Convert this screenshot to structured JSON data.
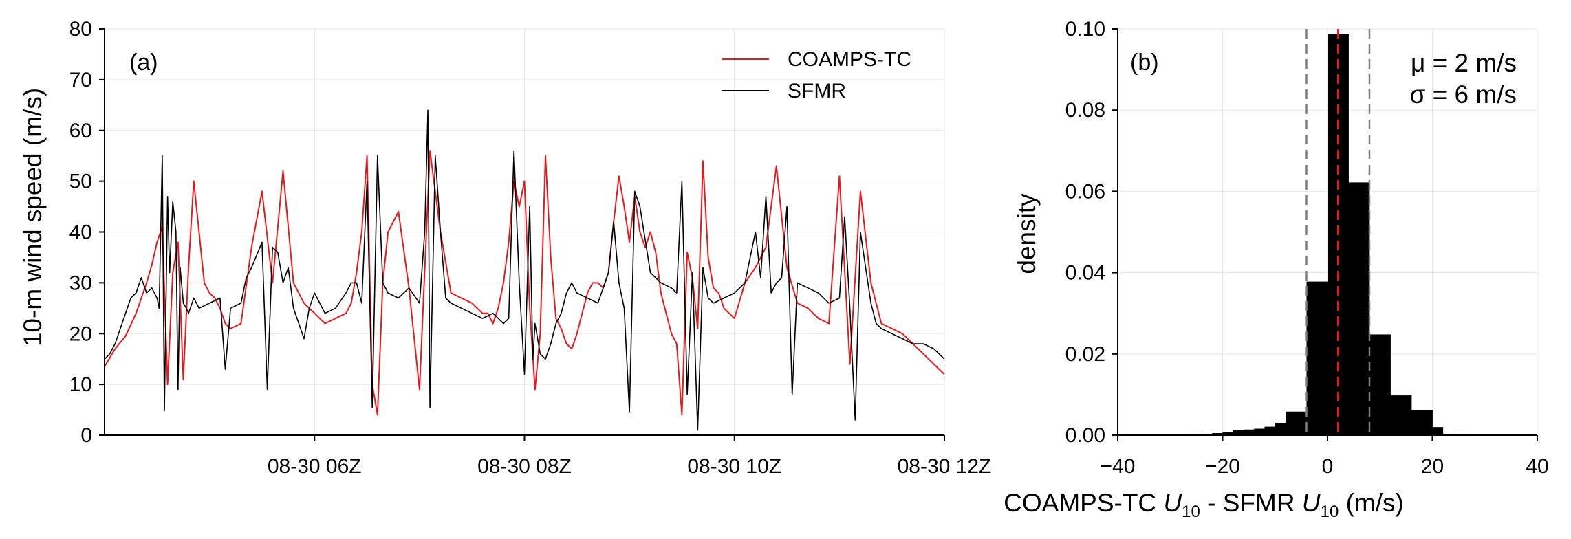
{
  "chart_data": [
    {
      "panel": "(a)",
      "type": "line",
      "title": "",
      "xlabel": "",
      "ylabel": "10-m wind speed (m/s)",
      "x_unit": "hours (UTC) on 08-30",
      "xlim": [
        4.0,
        12.0
      ],
      "ylim": [
        0,
        80
      ],
      "yticks": [
        0,
        10,
        20,
        30,
        40,
        50,
        60,
        70,
        80
      ],
      "xticks": [
        6,
        8,
        10,
        12
      ],
      "xtick_labels": [
        "08-30 06Z",
        "08-30 08Z",
        "08-30 10Z",
        "08-30 12Z"
      ],
      "grid": true,
      "legend": {
        "placement": "top-right",
        "entries": [
          "COAMPS-TC",
          "SFMR"
        ]
      },
      "series": [
        {
          "name": "COAMPS-TC",
          "color": "#e8191b",
          "x": [
            4.0,
            4.1,
            4.2,
            4.3,
            4.4,
            4.45,
            4.5,
            4.55,
            4.6,
            4.65,
            4.7,
            4.75,
            4.8,
            4.85,
            4.9,
            4.95,
            5.0,
            5.05,
            5.1,
            5.15,
            5.2,
            5.3,
            5.4,
            5.5,
            5.6,
            5.7,
            5.8,
            5.9,
            6.0,
            6.1,
            6.2,
            6.3,
            6.35,
            6.4,
            6.45,
            6.5,
            6.55,
            6.6,
            6.65,
            6.7,
            6.8,
            6.9,
            7.0,
            7.1,
            7.2,
            7.3,
            7.4,
            7.5,
            7.6,
            7.65,
            7.7,
            7.75,
            7.8,
            7.85,
            7.9,
            7.95,
            8.0,
            8.05,
            8.1,
            8.15,
            8.2,
            8.25,
            8.3,
            8.35,
            8.4,
            8.45,
            8.5,
            8.55,
            8.6,
            8.65,
            8.7,
            8.75,
            8.8,
            8.85,
            8.9,
            8.95,
            9.0,
            9.05,
            9.1,
            9.15,
            9.2,
            9.25,
            9.3,
            9.35,
            9.4,
            9.45,
            9.5,
            9.55,
            9.6,
            9.65,
            9.7,
            9.75,
            9.8,
            9.85,
            9.9,
            9.95,
            10.0,
            10.1,
            10.2,
            10.3,
            10.4,
            10.5,
            10.6,
            10.7,
            10.8,
            10.9,
            11.0,
            11.1,
            11.2,
            11.3,
            11.4,
            11.5,
            11.6,
            11.7,
            11.8,
            11.9,
            12.0
          ],
          "y": [
            13.5,
            17.0,
            19.5,
            24.0,
            30.0,
            33.5,
            38.0,
            41.0,
            10.0,
            32.0,
            38.0,
            11.0,
            33.0,
            50.0,
            40.0,
            30.0,
            28.0,
            27.0,
            25.0,
            22.0,
            21.0,
            22.0,
            37.0,
            48.0,
            30.0,
            52.0,
            30.0,
            26.0,
            24.0,
            22.0,
            23.0,
            24.0,
            26.0,
            32.0,
            40.0,
            55.0,
            10.0,
            4.0,
            30.0,
            40.0,
            44.0,
            29.0,
            9.0,
            56.0,
            40.0,
            28.0,
            27.0,
            26.0,
            24.0,
            24.0,
            22.0,
            25.0,
            30.0,
            38.0,
            50.0,
            45.0,
            50.0,
            25.0,
            9.0,
            20.0,
            55.0,
            35.0,
            23.0,
            21.0,
            18.0,
            17.0,
            20.0,
            24.0,
            28.0,
            30.0,
            30.0,
            29.0,
            32.0,
            42.0,
            51.0,
            45.0,
            38.0,
            47.0,
            40.0,
            37.0,
            40.0,
            36.0,
            28.0,
            24.0,
            20.0,
            18.0,
            4.0,
            36.0,
            31.0,
            21.0,
            54.0,
            35.0,
            29.0,
            28.0,
            25.0,
            24.0,
            23.0,
            30.0,
            33.0,
            37.0,
            53.0,
            33.0,
            26.0,
            25.0,
            23.0,
            22.0,
            51.0,
            14.0,
            48.0,
            30.0,
            22.0,
            21.0,
            20.0,
            18.0,
            16.0,
            14.0,
            12.0
          ]
        },
        {
          "name": "SFMR",
          "color": "#000000",
          "x": [
            4.0,
            4.05,
            4.1,
            4.15,
            4.2,
            4.25,
            4.3,
            4.35,
            4.4,
            4.45,
            4.5,
            4.52,
            4.55,
            4.57,
            4.6,
            4.62,
            4.65,
            4.68,
            4.7,
            4.72,
            4.75,
            4.78,
            4.8,
            4.85,
            4.9,
            5.0,
            5.1,
            5.15,
            5.2,
            5.3,
            5.35,
            5.4,
            5.5,
            5.55,
            5.6,
            5.65,
            5.7,
            5.75,
            5.8,
            5.85,
            5.9,
            5.95,
            6.0,
            6.1,
            6.2,
            6.3,
            6.35,
            6.4,
            6.45,
            6.5,
            6.55,
            6.6,
            6.65,
            6.7,
            6.8,
            6.9,
            7.0,
            7.05,
            7.08,
            7.1,
            7.15,
            7.2,
            7.25,
            7.3,
            7.4,
            7.5,
            7.6,
            7.7,
            7.8,
            7.85,
            7.9,
            7.95,
            8.0,
            8.05,
            8.08,
            8.1,
            8.15,
            8.2,
            8.25,
            8.3,
            8.35,
            8.4,
            8.45,
            8.5,
            8.6,
            8.7,
            8.8,
            8.85,
            8.9,
            8.95,
            9.0,
            9.05,
            9.1,
            9.2,
            9.3,
            9.4,
            9.45,
            9.5,
            9.55,
            9.6,
            9.65,
            9.7,
            9.75,
            9.8,
            9.9,
            10.0,
            10.1,
            10.2,
            10.25,
            10.3,
            10.35,
            10.4,
            10.45,
            10.5,
            10.55,
            10.6,
            10.7,
            10.8,
            10.9,
            11.0,
            11.05,
            11.1,
            11.15,
            11.2,
            11.25,
            11.3,
            11.35,
            11.4,
            11.5,
            11.6,
            11.7,
            11.8,
            11.9,
            12.0
          ],
          "y": [
            15.0,
            16.0,
            18.0,
            21.0,
            24.0,
            27.0,
            28.0,
            31.0,
            28.0,
            29.0,
            27.0,
            25.0,
            55.0,
            4.8,
            47.0,
            32.0,
            46.0,
            40.0,
            9.0,
            33.0,
            26.0,
            25.0,
            24.0,
            27.0,
            25.0,
            26.0,
            27.0,
            13.0,
            25.0,
            26.0,
            31.0,
            33.0,
            38.0,
            9.0,
            37.0,
            36.0,
            30.0,
            33.0,
            25.0,
            22.0,
            19.0,
            25.0,
            28.0,
            24.0,
            25.0,
            28.0,
            30.0,
            30.0,
            26.0,
            50.0,
            5.5,
            55.0,
            30.0,
            28.0,
            27.0,
            29.0,
            26.0,
            40.0,
            64.0,
            5.5,
            55.0,
            40.0,
            27.0,
            26.0,
            25.0,
            24.0,
            23.0,
            24.0,
            22.0,
            23.0,
            56.0,
            30.0,
            12.0,
            45.0,
            15.0,
            22.0,
            16.0,
            15.0,
            18.0,
            22.0,
            24.0,
            28.0,
            30.0,
            28.0,
            27.0,
            26.0,
            32.0,
            42.0,
            30.0,
            25.0,
            4.5,
            48.0,
            45.0,
            32.0,
            30.0,
            29.0,
            28.0,
            50.0,
            8.0,
            32.0,
            1.0,
            33.0,
            27.0,
            26.0,
            27.0,
            28.0,
            30.0,
            40.0,
            31.0,
            47.0,
            28.0,
            30.0,
            31.0,
            45.0,
            8.0,
            30.0,
            29.0,
            28.0,
            26.0,
            27.0,
            43.0,
            25.0,
            3.0,
            40.0,
            33.0,
            26.0,
            22.0,
            21.0,
            20.0,
            19.0,
            18.0,
            18.0,
            17.0,
            15.0
          ]
        }
      ]
    },
    {
      "panel": "(b)",
      "type": "bar",
      "subtype": "histogram",
      "title": "",
      "xlabel": "COAMPS-TC U10 - SFMR U10 (m/s)",
      "ylabel": "density",
      "xlim": [
        -40,
        40
      ],
      "ylim": [
        0,
        0.1
      ],
      "xticks": [
        -40,
        -20,
        0,
        20,
        40
      ],
      "xtick_labels": [
        "−40",
        "−20",
        "0",
        "20",
        "40"
      ],
      "yticks": [
        0.0,
        0.02,
        0.04,
        0.06,
        0.08,
        0.1
      ],
      "ytick_labels": [
        "0.00",
        "0.02",
        "0.04",
        "0.06",
        "0.08",
        "0.10"
      ],
      "grid": true,
      "bin_edges": [
        -26,
        -24,
        -22,
        -20,
        -18,
        -16,
        -14,
        -12,
        -10,
        -8,
        -6,
        -4,
        -2,
        0,
        2,
        4,
        6,
        8,
        10,
        12,
        14,
        16,
        18,
        20,
        22,
        24,
        26
      ],
      "values": [
        0.0002,
        0.0003,
        0.0005,
        0.0008,
        0.0012,
        0.0014,
        0.0016,
        0.0021,
        0.003,
        0.0058,
        0.0058,
        0.0378,
        0.0378,
        0.0988,
        0.0988,
        0.0622,
        0.0622,
        0.0248,
        0.0248,
        0.0098,
        0.0098,
        0.0062,
        0.0062,
        0.002,
        0.0003,
        0.0002
      ],
      "mean_line": 2,
      "sigma_lines": [
        -4,
        8
      ],
      "stats": {
        "mu": "μ = 2 m/s",
        "sigma": "σ = 6 m/s"
      }
    }
  ]
}
